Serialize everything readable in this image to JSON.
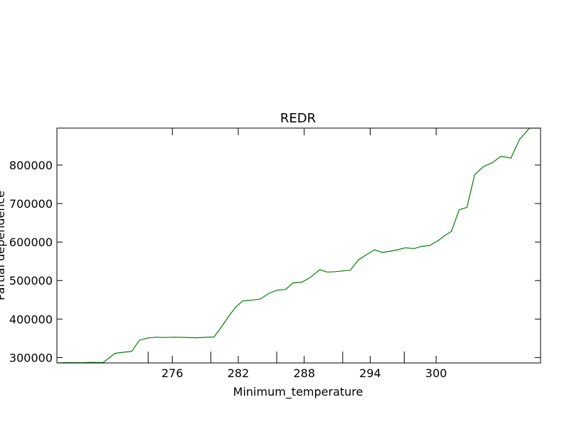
{
  "chart_data": {
    "type": "line",
    "title": "REDR",
    "xlabel": "Minimum_temperature",
    "ylabel": "Partial dependence",
    "xlim": [
      265.5,
      309.5
    ],
    "ylim": [
      286000,
      896000
    ],
    "x_ticks": [
      276,
      282,
      288,
      294,
      300
    ],
    "x_minor_ticks": [
      273.8,
      279.5,
      285.5,
      291.5,
      297.1
    ],
    "y_ticks": [
      300000,
      400000,
      500000,
      600000,
      700000,
      800000
    ],
    "grid": false,
    "legend": "none",
    "series": [
      {
        "color": "#008000",
        "x": [
          265.5,
          266.5,
          267.6,
          268.6,
          269.7,
          270.8,
          271.6,
          272.3,
          273.0,
          273.8,
          274.6,
          275.3,
          276.0,
          276.8,
          277.5,
          278.2,
          279.0,
          279.8,
          280.6,
          281.2,
          281.8,
          282.4,
          283.2,
          284.0,
          284.8,
          285.5,
          286.3,
          287.0,
          287.8,
          288.6,
          289.4,
          290.1,
          290.8,
          291.5,
          292.2,
          292.9,
          293.6,
          294.4,
          295.1,
          295.8,
          296.5,
          297.2,
          298.0,
          298.7,
          299.4,
          300.2,
          300.8,
          301.4,
          302.1,
          302.8,
          303.5,
          304.3,
          305.1,
          305.9,
          306.8,
          307.6,
          308.5,
          309.5
        ],
        "y": [
          286000,
          287000,
          286500,
          287500,
          287000,
          311000,
          314000,
          316000,
          345000,
          351000,
          353000,
          352000,
          353000,
          352500,
          352000,
          351500,
          352500,
          353500,
          385000,
          410000,
          432000,
          447000,
          449000,
          452000,
          467000,
          475000,
          477000,
          494000,
          496000,
          509000,
          528000,
          522000,
          523000,
          525000,
          527000,
          553000,
          566000,
          580000,
          573000,
          576000,
          580000,
          585000,
          583000,
          589000,
          591000,
          604000,
          617000,
          628000,
          684000,
          690000,
          775000,
          796000,
          806000,
          823000,
          818000,
          867000,
          896000,
          896000
        ]
      }
    ]
  }
}
